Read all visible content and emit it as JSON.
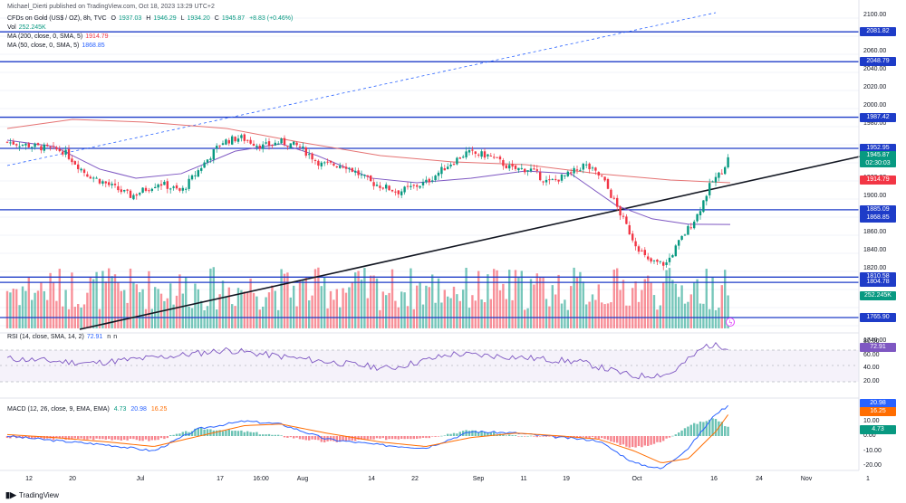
{
  "header": {
    "publisher": "Michael_Dierti published on TradingView.com, Oct 18, 2023 13:29 UTC+2",
    "symbol": "CFDs on Gold (US$ / OZ), 8h, TVC",
    "o_label": "O",
    "o_val": "1937.03",
    "h_label": "H",
    "h_val": "1946.29",
    "l_label": "L",
    "l_val": "1934.20",
    "c_label": "C",
    "c_val": "1945.87",
    "change": "+8.83 (+0.46%)",
    "vol_label": "Vol",
    "vol_val": "252.245K",
    "ma200_label": "MA (200, close, 0, SMA, 5)",
    "ma200_val": "1914.79",
    "ma50_label": "MA (50, close, 0, SMA, 5)",
    "ma50_val": "1868.85",
    "rsi_label": "RSI (14, close, SMA, 14, 2)",
    "rsi_val": "72.91",
    "rsi_na1": "n",
    "rsi_na2": "n",
    "macd_label": "MACD (12, 26, close, 9, EMA, EMA)",
    "macd_hist": "4.73",
    "macd_line": "20.98",
    "macd_signal": "16.25"
  },
  "price_axis": [
    "2100.00",
    "2060.00",
    "2040.00",
    "2020.00",
    "2000.00",
    "1980.00",
    "1940.00",
    "1920.00",
    "1900.00",
    "1860.00",
    "1840.00",
    "1820.00",
    "1740.00"
  ],
  "rsi_axis": [
    "80.00",
    "60.00",
    "40.00",
    "20.00"
  ],
  "macd_axis": [
    "10.00",
    "0.00",
    "-10.00",
    "-20.00"
  ],
  "x_axis": [
    "12",
    "20",
    "Jul",
    "17",
    "16:00",
    "Aug",
    "14",
    "22",
    "Sep",
    "11",
    "19",
    "Oct",
    "16",
    "24",
    "Nov",
    "1"
  ],
  "levels": [
    {
      "value": "2081.82"
    },
    {
      "value": "2048.79"
    },
    {
      "value": "1987.42"
    },
    {
      "value": "1952.95"
    },
    {
      "value": "1885.09"
    },
    {
      "value": "1810.58"
    },
    {
      "value": "1804.78"
    },
    {
      "value": "1765.90"
    }
  ],
  "tags": {
    "price": "1945.87",
    "countdown": "02:30:03",
    "ma200": "1914.79",
    "ma50": "1868.85",
    "vol": "252.245K",
    "rsi": "72.91",
    "macd_line": "20.98",
    "macd_signal": "16.25",
    "macd_hist": "4.73"
  },
  "colors": {
    "up": "#089981",
    "down": "#f23645",
    "level": "#1e3cc8",
    "ma200": "#e57373",
    "ma50": "#7e57c2",
    "rsi": "#7e57c2",
    "macd": "#2962ff",
    "signal": "#ff6d00",
    "trend": "#131722"
  },
  "footer": {
    "brand": "TradingView"
  },
  "chart_data": {
    "type": "line",
    "title": "CFDs on Gold (US$ / OZ), 8h, TVC",
    "x": [
      "12",
      "20",
      "Jul",
      "17",
      "Aug",
      "14",
      "22",
      "Sep",
      "11",
      "19",
      "Oct",
      "16"
    ],
    "series": [
      {
        "name": "Close",
        "values": [
          1960,
          1935,
          1920,
          1965,
          1955,
          1930,
          1905,
          1940,
          1930,
          1915,
          1825,
          1946
        ]
      },
      {
        "name": "MA (200, close, 0, SMA, 5)",
        "values": [
          1980,
          1982,
          1975,
          1962,
          1950,
          1940,
          1935,
          1934,
          1930,
          1925,
          1916,
          1915
        ]
      },
      {
        "name": "MA (50, close, 0, SMA, 5)",
        "values": [
          1960,
          1940,
          1925,
          1945,
          1950,
          1930,
          1910,
          1920,
          1930,
          1918,
          1870,
          1869
        ]
      }
    ],
    "ylim": [
      1740,
      2110
    ],
    "levels": [
      2081.82,
      2048.79,
      1987.42,
      1952.95,
      1885.09,
      1810.58,
      1804.78,
      1765.9
    ],
    "last_price": 1945.87
  }
}
